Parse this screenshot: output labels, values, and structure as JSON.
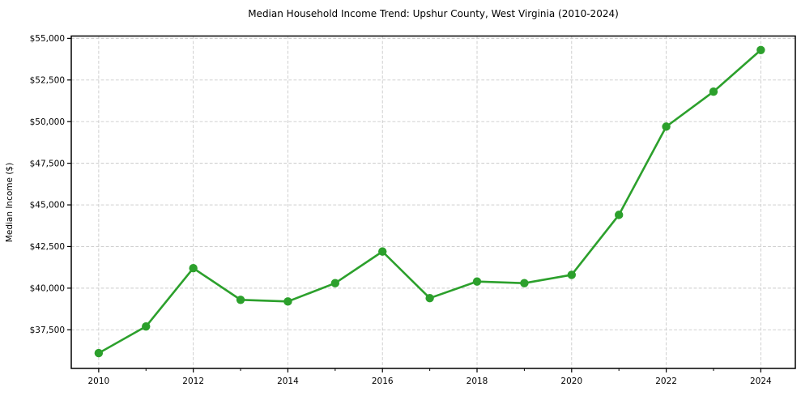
{
  "figure": {
    "title": "Median Household Income Trend: Upshur County, West Virginia (2010-2024)"
  },
  "chart_data": {
    "type": "line",
    "title": "Median Household Income Trend: Upshur County, West Virginia (2010-2024)",
    "xlabel": "",
    "ylabel": "Median Income ($)",
    "x": [
      2010,
      2011,
      2012,
      2013,
      2014,
      2015,
      2016,
      2017,
      2018,
      2019,
      2020,
      2021,
      2022,
      2023,
      2024
    ],
    "series": [
      {
        "name": "Median Household Income",
        "values": [
          36100,
          37700,
          41200,
          39300,
          39200,
          40300,
          42200,
          39400,
          40400,
          40300,
          40800,
          44400,
          49700,
          51800,
          54300
        ]
      }
    ],
    "x_major_ticks": [
      2010,
      2012,
      2014,
      2016,
      2018,
      2020,
      2022,
      2024
    ],
    "x_major_tick_labels": [
      "2010",
      "2012",
      "2014",
      "2016",
      "2018",
      "2020",
      "2022",
      "2024"
    ],
    "x_minor_ticks": [
      2011,
      2013,
      2015,
      2017,
      2019,
      2021,
      2023
    ],
    "y_ticks": [
      37500,
      40000,
      42500,
      45000,
      47500,
      50000,
      52500,
      55000
    ],
    "y_tick_labels": [
      "$37,500",
      "$40,000",
      "$42,500",
      "$45,000",
      "$47,500",
      "$50,000",
      "$52,500",
      "$55,000"
    ],
    "xlim": [
      2009.42,
      2024.73
    ],
    "ylim": [
      35180,
      55140
    ],
    "grid": true,
    "grid_style": "dashed",
    "legend": false,
    "line_color": "#2ca02c",
    "marker": "circle",
    "marker_color": "#2ca02c",
    "grid_color": "#cacaca",
    "axis_color": "#000000",
    "background": "#ffffff"
  }
}
